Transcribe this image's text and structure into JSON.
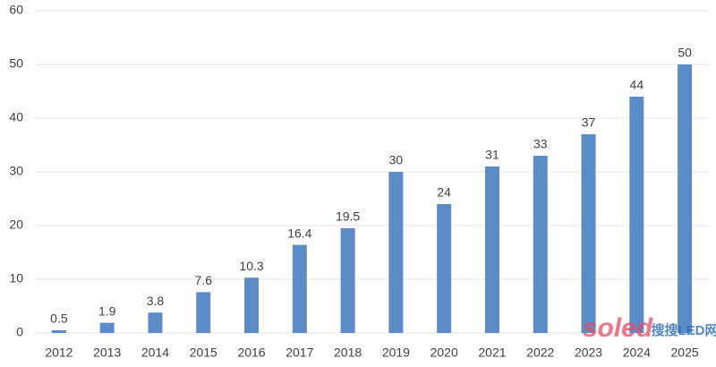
{
  "chart_data": {
    "type": "bar",
    "categories": [
      "2012",
      "2013",
      "2014",
      "2015",
      "2016",
      "2017",
      "2018",
      "2019",
      "2020",
      "2021",
      "2022",
      "2023",
      "2024",
      "2025"
    ],
    "values": [
      0.5,
      1.9,
      3.8,
      7.6,
      10.3,
      16.4,
      19.5,
      30,
      24,
      31,
      33,
      37,
      44,
      50
    ],
    "color": "#5b8cc7",
    "ylim": [
      0,
      60
    ],
    "yticks": [
      0,
      10,
      20,
      30,
      40,
      50,
      60
    ],
    "grid": true,
    "watermark": "soled",
    "watermark_2": "搜搜LED网"
  }
}
